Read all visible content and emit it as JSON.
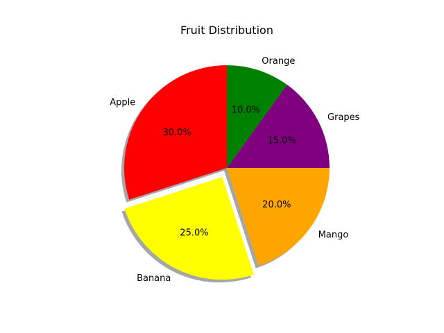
{
  "chart_data": {
    "type": "pie",
    "title": "Fruit Distribution",
    "categories": [
      "Apple",
      "Banana",
      "Mango",
      "Grapes",
      "Orange"
    ],
    "values": [
      30,
      25,
      20,
      15,
      10
    ],
    "percent_labels": [
      "30.0%",
      "25.0%",
      "20.0%",
      "15.0%",
      "10.0%"
    ],
    "colors": [
      "#ff0000",
      "#ffff00",
      "#ffa500",
      "#800080",
      "#008000"
    ],
    "explode": [
      0,
      0.1,
      0,
      0,
      0
    ],
    "start_angle_deg": 90,
    "direction": "counterclockwise",
    "shadow": true
  }
}
